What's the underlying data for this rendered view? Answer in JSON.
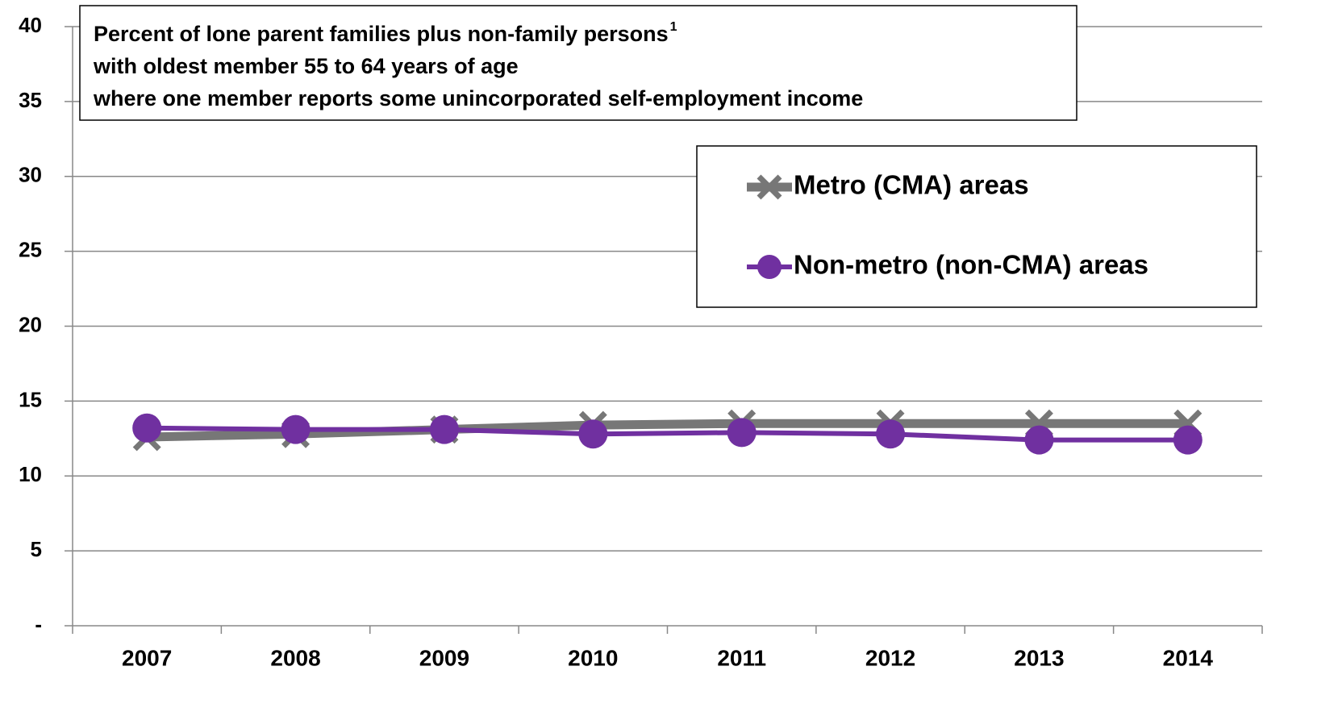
{
  "chart_data": {
    "type": "line",
    "title": [
      "Percent of lone parent families plus non-family persons",
      "with oldest member 55 to 64  years of age",
      "where one member reports some unincorporated self-employment income"
    ],
    "title_note": "1",
    "categories": [
      "2007",
      "2008",
      "2009",
      "2010",
      "2011",
      "2012",
      "2013",
      "2014"
    ],
    "series": [
      {
        "name": "Metro (CMA) areas",
        "color": "#777777",
        "marker": "x",
        "values": [
          12.6,
          12.8,
          13.1,
          13.4,
          13.5,
          13.5,
          13.5,
          13.5
        ]
      },
      {
        "name": "Non-metro (non-CMA) areas",
        "color": "#7030a0",
        "marker": "circle",
        "values": [
          13.2,
          13.1,
          13.1,
          12.8,
          12.9,
          12.8,
          12.4,
          12.4
        ]
      }
    ],
    "ylim": [
      0,
      40
    ],
    "yticks": [
      {
        "value": 0,
        "label": "-"
      },
      5,
      10,
      15,
      20,
      25,
      30,
      35,
      40
    ],
    "grid": true
  }
}
